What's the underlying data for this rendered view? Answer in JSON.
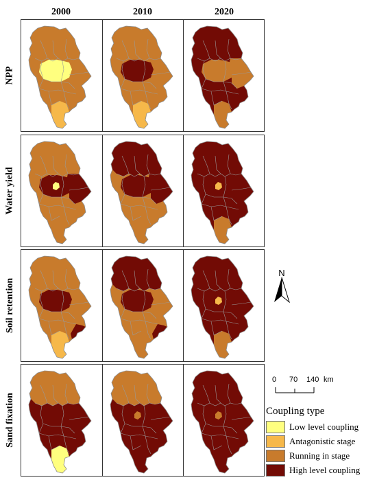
{
  "years": [
    "2000",
    "2010",
    "2020"
  ],
  "rows": [
    {
      "label": "NPP",
      "maps": [
        {
          "base": "running",
          "center": "low",
          "south": "antagonistic"
        },
        {
          "base": "running",
          "center": "high",
          "south": "antagonistic"
        },
        {
          "base": "high",
          "center": "running",
          "east": "running",
          "south": "running"
        }
      ]
    },
    {
      "label": "Water yield",
      "maps": [
        {
          "base": "running",
          "center": "high",
          "east": "high",
          "core": "low"
        },
        {
          "base": "running",
          "north": "high",
          "center": "high",
          "east": "high"
        },
        {
          "base": "high",
          "core": "antagonistic",
          "south": "running"
        }
      ]
    },
    {
      "label": "Soil retention",
      "maps": [
        {
          "base": "running",
          "center": "high",
          "west": "antagonistic",
          "south": "antagonistic",
          "southeast": "high"
        },
        {
          "base": "running",
          "north": "high",
          "center": "high",
          "southeast": "high"
        },
        {
          "base": "high",
          "core": "antagonistic",
          "west": "running",
          "south": "running"
        }
      ]
    },
    {
      "label": "Sand fixation",
      "maps": [
        {
          "base": "high",
          "north": "running",
          "south": "low"
        },
        {
          "base": "high",
          "north": "running",
          "core": "running"
        },
        {
          "base": "high",
          "core": "running"
        }
      ]
    }
  ],
  "north_arrow": {
    "label": "N"
  },
  "scale_bar": {
    "ticks": [
      "0",
      "70",
      "140"
    ],
    "unit": "km"
  },
  "legend": {
    "title": "Coupling type",
    "items": [
      {
        "key": "low",
        "label": "Low level coupling",
        "color": "#ffff7f"
      },
      {
        "key": "antagonistic",
        "label": "Antagonistic stage",
        "color": "#f6b84a"
      },
      {
        "key": "running",
        "label": "Running in stage",
        "color": "#c87b2c"
      },
      {
        "key": "high",
        "label": "High level coupling",
        "color": "#720b05"
      }
    ]
  }
}
